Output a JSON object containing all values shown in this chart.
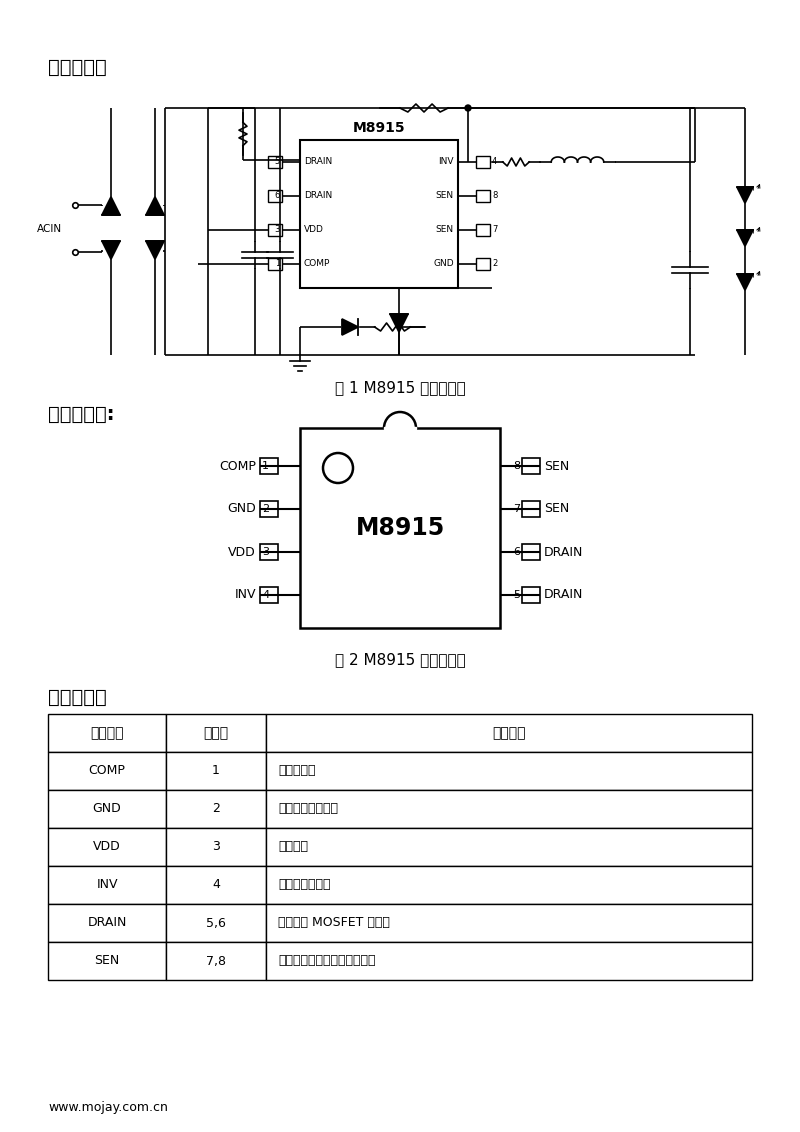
{
  "section1_title": "典型应用：",
  "fig1_caption": "图 1 M8915 典型应用图",
  "section2_title": "管脚排列图:",
  "fig2_caption": "图 2 M8915 管脚排列图",
  "section3_title": "管脚描述：",
  "chip_name": "M8915",
  "table_headers": [
    "管脚名称",
    "管脚号",
    "管脚描述"
  ],
  "table_rows": [
    [
      "COMP",
      "1",
      "环路补偿点"
    ],
    [
      "GND",
      "2",
      "芯片信号和功率地"
    ],
    [
      "VDD",
      "3",
      "芯片供电"
    ],
    [
      "INV",
      "4",
      "反馈信号采样端"
    ],
    [
      "DRAIN",
      "5,6",
      "内部高压 MOSFET 的漏极"
    ],
    [
      "SEN",
      "7,8",
      "电流采样端，接采样电阻到地"
    ]
  ],
  "footer": "www.mojay.com.cn",
  "bg_color": "#ffffff"
}
